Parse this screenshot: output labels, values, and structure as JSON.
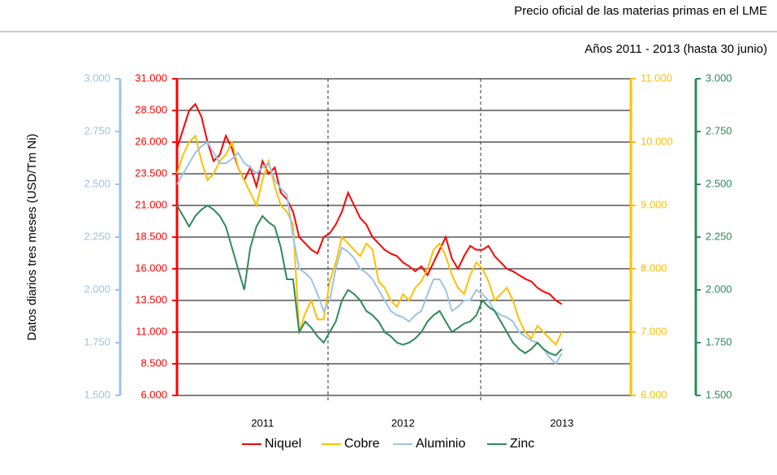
{
  "chart_data": {
    "type": "line",
    "title": "Precio oficial de las materias primas en el LME",
    "subtitle": "Años 2011 - 2013 (hasta 30 junio)",
    "y_label": "Datos diarios tres meses (USD/Tm Ni)",
    "categories": [
      null,
      null,
      null,
      null,
      null,
      null,
      null,
      null,
      null,
      null,
      null,
      null,
      null,
      null,
      "2011",
      null,
      null,
      null,
      null,
      null,
      null,
      null,
      null,
      null,
      null,
      null,
      null,
      null,
      null,
      null,
      null,
      null,
      null,
      null,
      null,
      null,
      null,
      "2012",
      null,
      null,
      null,
      null,
      null,
      null,
      null,
      null,
      null,
      null,
      null,
      null,
      null,
      null,
      null,
      null,
      null,
      null,
      null,
      null,
      null,
      null,
      null,
      null,
      null,
      "2013"
    ],
    "ylim": [
      6000,
      31000
    ],
    "yticks": [
      {
        "value": 6000,
        "label": "6.000"
      },
      {
        "value": 8500,
        "label": "8.500"
      },
      {
        "value": 11000,
        "label": "11.000"
      },
      {
        "value": 13500,
        "label": "13.500"
      },
      {
        "value": 16000,
        "label": "16.000"
      },
      {
        "value": 18500,
        "label": "18.500"
      },
      {
        "value": 21000,
        "label": "21.000"
      },
      {
        "value": 23500,
        "label": "23.500"
      },
      {
        "value": 26000,
        "label": "26.000"
      },
      {
        "value": 28500,
        "label": "28.500"
      },
      {
        "value": 31000,
        "label": "31.000"
      }
    ],
    "y2lim": [
      6000,
      11000
    ],
    "y2ticks": [
      {
        "value": 6000,
        "label": "6.000"
      },
      {
        "value": 7000,
        "label": "7.000"
      },
      {
        "value": 8000,
        "label": "8.000"
      },
      {
        "value": 9000,
        "label": "9.000"
      },
      {
        "value": 10000,
        "label": "10.000"
      },
      {
        "value": 11000,
        "label": "11.000"
      }
    ],
    "y3lim": [
      1500,
      3000
    ],
    "y3ticks": [
      {
        "value": 1500,
        "label": "1.500"
      },
      {
        "value": 1750,
        "label": "1.750"
      },
      {
        "value": 2000,
        "label": "2.000"
      },
      {
        "value": 2250,
        "label": "2.250"
      },
      {
        "value": 2500,
        "label": "2.500"
      },
      {
        "value": 2750,
        "label": "2.750"
      },
      {
        "value": 3000,
        "label": "3.000"
      }
    ],
    "y4lim": [
      1500,
      3000
    ],
    "y4ticks": [
      {
        "value": 1500,
        "label": "1.500"
      },
      {
        "value": 1750,
        "label": "1.750"
      },
      {
        "value": 2000,
        "label": "2.000"
      },
      {
        "value": 2250,
        "label": "2.250"
      },
      {
        "value": 2500,
        "label": "2.500"
      },
      {
        "value": 2750,
        "label": "2.750"
      },
      {
        "value": 3000,
        "label": "3.000"
      }
    ],
    "grid": true,
    "legend": "bottom",
    "series": [
      {
        "name": "Niquel",
        "color": "#ff0000",
        "axis": "y",
        "values": [
          25500,
          27000,
          28500,
          29000,
          28000,
          26000,
          24500,
          25000,
          26500,
          25500,
          24000,
          23000,
          24000,
          22500,
          24500,
          23500,
          24000,
          22000,
          21500,
          20500,
          18500,
          18000,
          17500,
          17200,
          18500,
          18800,
          19500,
          20500,
          22000,
          21000,
          20000,
          19500,
          18500,
          18000,
          17500,
          17200,
          17000,
          16500,
          16200,
          15800,
          16200,
          15500,
          16500,
          17500,
          18500,
          16800,
          16000,
          17000,
          17800,
          17500,
          17500,
          17800,
          17000,
          16500,
          16000,
          15800,
          15500,
          15200,
          15000,
          14500,
          14200,
          14000,
          13500,
          13200
        ]
      },
      {
        "name": "Cobre",
        "color": "#ffc000",
        "axis": "y2",
        "values": [
          9500,
          9800,
          10000,
          10100,
          9700,
          9400,
          9500,
          9700,
          9800,
          10000,
          9600,
          9400,
          9200,
          9000,
          9400,
          9700,
          9300,
          9000,
          8900,
          8700,
          7000,
          7300,
          7500,
          7200,
          7200,
          7800,
          8100,
          8500,
          8400,
          8300,
          8200,
          8400,
          8300,
          7800,
          7700,
          7500,
          7400,
          7600,
          7500,
          7700,
          7800,
          8000,
          8300,
          8400,
          8200,
          7900,
          7700,
          7600,
          7900,
          8100,
          8000,
          7800,
          7500,
          7600,
          7700,
          7500,
          7200,
          7000,
          6900,
          7100,
          7000,
          6900,
          6800,
          7000
        ]
      },
      {
        "name": "Aluminio",
        "color": "#9dc3e6",
        "axis": "y3",
        "values": [
          2500,
          2550,
          2600,
          2650,
          2680,
          2700,
          2650,
          2600,
          2600,
          2620,
          2650,
          2600,
          2580,
          2550,
          2580,
          2600,
          2520,
          2480,
          2450,
          2250,
          2100,
          2080,
          2050,
          1980,
          1900,
          1950,
          2100,
          2200,
          2180,
          2150,
          2100,
          2080,
          2050,
          2000,
          1950,
          1900,
          1880,
          1870,
          1850,
          1880,
          1900,
          1980,
          2050,
          2050,
          2000,
          1900,
          1920,
          1950,
          1950,
          2000,
          1980,
          1950,
          1900,
          1880,
          1870,
          1850,
          1800,
          1780,
          1760,
          1750,
          1720,
          1680,
          1650,
          1700
        ]
      },
      {
        "name": "Zinc",
        "color": "#2e8b57",
        "axis": "y4",
        "values": [
          2400,
          2350,
          2300,
          2350,
          2380,
          2400,
          2380,
          2350,
          2300,
          2200,
          2100,
          2000,
          2200,
          2300,
          2350,
          2320,
          2300,
          2200,
          2050,
          2050,
          1800,
          1850,
          1820,
          1780,
          1750,
          1800,
          1850,
          1950,
          2000,
          1980,
          1950,
          1900,
          1880,
          1850,
          1800,
          1780,
          1750,
          1740,
          1750,
          1770,
          1800,
          1850,
          1880,
          1900,
          1850,
          1800,
          1820,
          1840,
          1850,
          1880,
          1950,
          1920,
          1900,
          1850,
          1800,
          1750,
          1720,
          1700,
          1720,
          1750,
          1720,
          1700,
          1690,
          1720
        ]
      }
    ]
  }
}
